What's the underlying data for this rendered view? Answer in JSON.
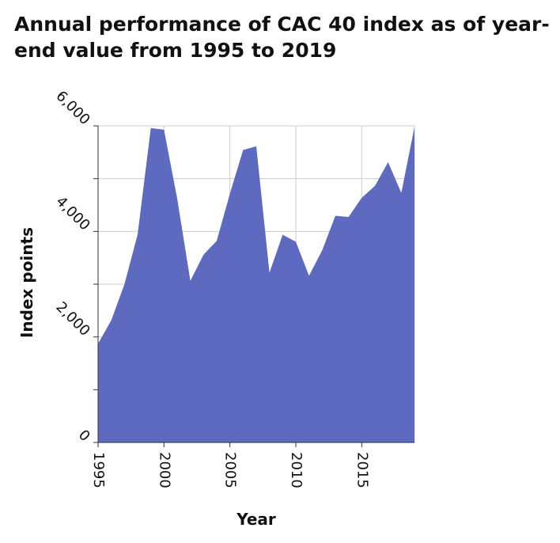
{
  "chart_data": {
    "type": "area",
    "title": "Annual performance of CAC 40 index as of year-end value from 1995 to 2019",
    "xlabel": "Year",
    "ylabel": "Index points",
    "xlim": [
      1995,
      2019
    ],
    "ylim": [
      0,
      6000
    ],
    "x_ticks": [
      "1995",
      "2000",
      "2005",
      "2010",
      "2015"
    ],
    "y_ticks": [
      "0",
      "2,000",
      "4,000",
      "6,000"
    ],
    "grid": true,
    "fill_color": "#5e6abf",
    "x": [
      1995,
      1996,
      1997,
      1998,
      1999,
      2000,
      2001,
      2002,
      2003,
      2004,
      2005,
      2006,
      2007,
      2008,
      2009,
      2010,
      2011,
      2012,
      2013,
      2014,
      2015,
      2016,
      2017,
      2018,
      2019
    ],
    "values": [
      1872,
      2316,
      2999,
      3943,
      5958,
      5926,
      4625,
      3064,
      3558,
      3821,
      4715,
      5542,
      5614,
      3218,
      3936,
      3805,
      3160,
      3641,
      4296,
      4273,
      4637,
      4862,
      5312,
      4730,
      5978
    ]
  }
}
